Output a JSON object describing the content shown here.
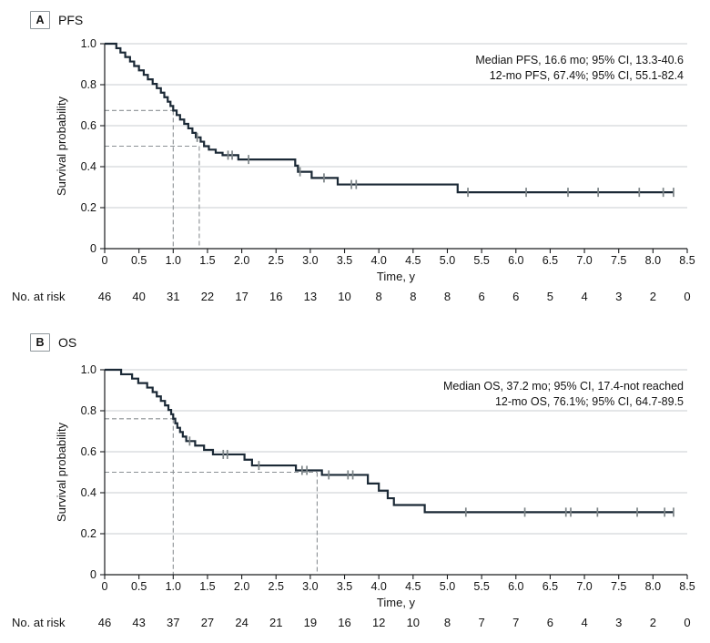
{
  "style": {
    "curve_color": "#1b2936",
    "grid_color": "#c9ced1",
    "dash_color": "#8b9094",
    "censor_color": "#7c8487",
    "axis_color": "#1a1c1e",
    "text_color": "#131313"
  },
  "chart_data": [
    {
      "type": "line",
      "subtype": "kaplan-meier-step",
      "panel_label": "A",
      "title": "PFS",
      "xlabel": "Time, y",
      "ylabel": "Survival probability",
      "xlim": [
        0,
        8.5
      ],
      "ylim": [
        0,
        1.0
      ],
      "grid": "horizontal",
      "x_ticks": [
        0,
        0.5,
        1.0,
        1.5,
        2.0,
        2.5,
        3.0,
        3.5,
        4.0,
        4.5,
        5.0,
        5.5,
        6.0,
        6.5,
        7.0,
        7.5,
        8.0,
        8.5
      ],
      "x_tick_labels": [
        "0",
        "0.5",
        "1.0",
        "1.5",
        "2.0",
        "2.5",
        "3.0",
        "3.5",
        "4.0",
        "4.5",
        "5.0",
        "5.5",
        "6.0",
        "6.5",
        "7.0",
        "7.5",
        "8.0",
        "8.5"
      ],
      "y_ticks": [
        0,
        0.2,
        0.4,
        0.6,
        0.8,
        1.0
      ],
      "y_tick_labels": [
        "0",
        "0.2",
        "0.4",
        "0.6",
        "0.8",
        "1.0"
      ],
      "annotation_lines": [
        "Median PFS, 16.6 mo; 95% CI, 13.3-40.6",
        "12-mo PFS, 67.4%; 95% CI, 55.1-82.4"
      ],
      "steps": [
        [
          0,
          1.0
        ],
        [
          0.17,
          0.978
        ],
        [
          0.23,
          0.957
        ],
        [
          0.3,
          0.935
        ],
        [
          0.37,
          0.913
        ],
        [
          0.43,
          0.891
        ],
        [
          0.5,
          0.87
        ],
        [
          0.57,
          0.848
        ],
        [
          0.63,
          0.826
        ],
        [
          0.7,
          0.804
        ],
        [
          0.76,
          0.783
        ],
        [
          0.82,
          0.761
        ],
        [
          0.87,
          0.739
        ],
        [
          0.92,
          0.717
        ],
        [
          0.96,
          0.696
        ],
        [
          1.0,
          0.674
        ],
        [
          1.05,
          0.652
        ],
        [
          1.1,
          0.63
        ],
        [
          1.16,
          0.609
        ],
        [
          1.22,
          0.587
        ],
        [
          1.28,
          0.565
        ],
        [
          1.33,
          0.543
        ],
        [
          1.4,
          0.522
        ],
        [
          1.45,
          0.5
        ],
        [
          1.52,
          0.483
        ],
        [
          1.62,
          0.468
        ],
        [
          1.72,
          0.456
        ],
        [
          1.95,
          0.435
        ],
        [
          2.78,
          0.405
        ],
        [
          2.82,
          0.375
        ],
        [
          3.02,
          0.345
        ],
        [
          3.4,
          0.313
        ],
        [
          5.15,
          0.275
        ],
        [
          8.3,
          0.275
        ]
      ],
      "censor_marks": [
        [
          1.35,
          0.543
        ],
        [
          1.8,
          0.456
        ],
        [
          1.86,
          0.456
        ],
        [
          2.1,
          0.435
        ],
        [
          2.85,
          0.375
        ],
        [
          3.2,
          0.345
        ],
        [
          3.6,
          0.313
        ],
        [
          3.67,
          0.313
        ],
        [
          5.3,
          0.275
        ],
        [
          6.15,
          0.275
        ],
        [
          6.76,
          0.275
        ],
        [
          7.2,
          0.275
        ],
        [
          7.8,
          0.275
        ],
        [
          8.15,
          0.275
        ],
        [
          8.3,
          0.275
        ]
      ],
      "reference_lines": [
        {
          "h_y": 0.674,
          "v_x": 1.0
        },
        {
          "h_y": 0.5,
          "v_x": 1.38
        }
      ],
      "no_at_risk": {
        "label": "No. at risk",
        "values": [
          "46",
          "40",
          "31",
          "22",
          "17",
          "16",
          "13",
          "10",
          "8",
          "8",
          "8",
          "6",
          "6",
          "5",
          "4",
          "3",
          "2",
          "0"
        ]
      }
    },
    {
      "type": "line",
      "subtype": "kaplan-meier-step",
      "panel_label": "B",
      "title": "OS",
      "xlabel": "Time, y",
      "ylabel": "Survival probability",
      "xlim": [
        0,
        8.5
      ],
      "ylim": [
        0,
        1.0
      ],
      "grid": "horizontal",
      "x_ticks": [
        0,
        0.5,
        1.0,
        1.5,
        2.0,
        2.5,
        3.0,
        3.5,
        4.0,
        4.5,
        5.0,
        5.5,
        6.0,
        6.5,
        7.0,
        7.5,
        8.0,
        8.5
      ],
      "x_tick_labels": [
        "0",
        "0.5",
        "1.0",
        "1.5",
        "2.0",
        "2.5",
        "3.0",
        "3.5",
        "4.0",
        "4.5",
        "5.0",
        "5.5",
        "6.0",
        "6.5",
        "7.0",
        "7.5",
        "8.0",
        "8.5"
      ],
      "y_ticks": [
        0,
        0.2,
        0.4,
        0.6,
        0.8,
        1.0
      ],
      "y_tick_labels": [
        "0",
        "0.2",
        "0.4",
        "0.6",
        "0.8",
        "1.0"
      ],
      "annotation_lines": [
        "Median OS, 37.2 mo; 95% CI, 17.4-not reached",
        "12-mo OS, 76.1%; 95% CI, 64.7-89.5"
      ],
      "steps": [
        [
          0,
          1.0
        ],
        [
          0.24,
          0.978
        ],
        [
          0.4,
          0.957
        ],
        [
          0.49,
          0.935
        ],
        [
          0.62,
          0.913
        ],
        [
          0.7,
          0.891
        ],
        [
          0.76,
          0.87
        ],
        [
          0.82,
          0.848
        ],
        [
          0.88,
          0.826
        ],
        [
          0.93,
          0.804
        ],
        [
          0.97,
          0.783
        ],
        [
          1.0,
          0.761
        ],
        [
          1.03,
          0.739
        ],
        [
          1.06,
          0.717
        ],
        [
          1.1,
          0.696
        ],
        [
          1.14,
          0.674
        ],
        [
          1.19,
          0.652
        ],
        [
          1.32,
          0.63
        ],
        [
          1.45,
          0.609
        ],
        [
          1.58,
          0.587
        ],
        [
          2.04,
          0.561
        ],
        [
          2.15,
          0.533
        ],
        [
          2.79,
          0.509
        ],
        [
          3.17,
          0.487
        ],
        [
          3.84,
          0.445
        ],
        [
          4.0,
          0.41
        ],
        [
          4.13,
          0.373
        ],
        [
          4.22,
          0.34
        ],
        [
          4.67,
          0.305
        ],
        [
          8.3,
          0.305
        ]
      ],
      "censor_marks": [
        [
          1.24,
          0.652
        ],
        [
          1.73,
          0.587
        ],
        [
          1.79,
          0.587
        ],
        [
          2.25,
          0.533
        ],
        [
          2.88,
          0.509
        ],
        [
          2.95,
          0.509
        ],
        [
          3.27,
          0.487
        ],
        [
          3.55,
          0.487
        ],
        [
          3.62,
          0.487
        ],
        [
          5.27,
          0.305
        ],
        [
          6.13,
          0.305
        ],
        [
          6.73,
          0.305
        ],
        [
          6.8,
          0.305
        ],
        [
          7.19,
          0.305
        ],
        [
          7.77,
          0.305
        ],
        [
          8.17,
          0.305
        ],
        [
          8.3,
          0.305
        ]
      ],
      "reference_lines": [
        {
          "h_y": 0.761,
          "v_x": 1.0
        },
        {
          "h_y": 0.5,
          "v_x": 3.1
        }
      ],
      "no_at_risk": {
        "label": "No. at risk",
        "values": [
          "46",
          "43",
          "37",
          "27",
          "24",
          "21",
          "19",
          "16",
          "12",
          "10",
          "8",
          "7",
          "7",
          "6",
          "4",
          "3",
          "2",
          "0"
        ]
      }
    }
  ]
}
